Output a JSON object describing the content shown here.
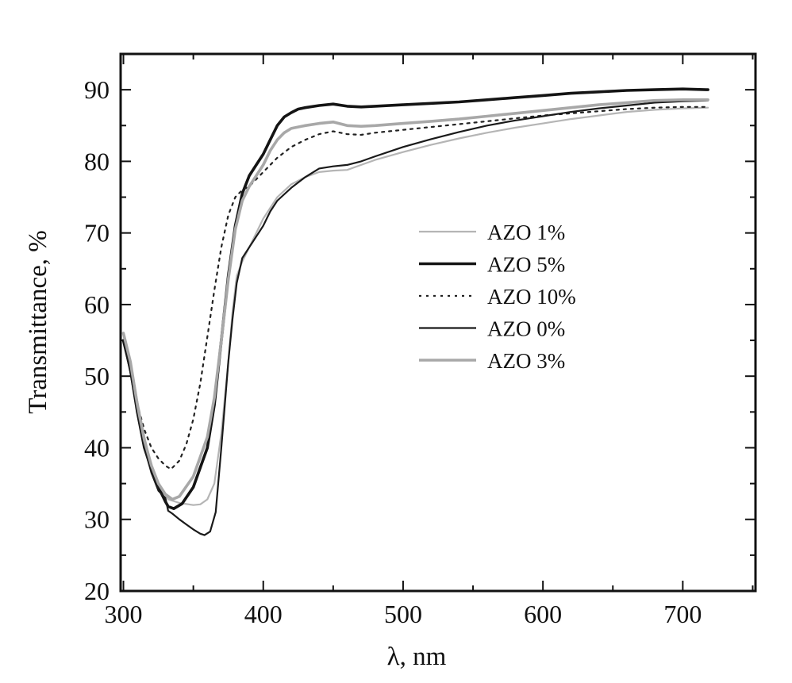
{
  "chart_data": {
    "type": "line",
    "title": "",
    "xlabel": "λ, nm",
    "ylabel": "Transmittance, %",
    "xlim": [
      298,
      752
    ],
    "ylim": [
      20,
      95
    ],
    "x_ticks": [
      300,
      400,
      500,
      600,
      700
    ],
    "y_ticks": [
      20,
      30,
      40,
      50,
      60,
      70,
      80,
      90
    ],
    "grid": false,
    "legend_position": "center-right",
    "series": [
      {
        "name": "AZO 1%",
        "color": "#b5b5b5",
        "width": 2.2,
        "dash": "",
        "points": [
          [
            300,
            56
          ],
          [
            305,
            52
          ],
          [
            310,
            46.5
          ],
          [
            315,
            41.5
          ],
          [
            320,
            37.5
          ],
          [
            325,
            35
          ],
          [
            330,
            33.5
          ],
          [
            332,
            32.8
          ],
          [
            340,
            32.3
          ],
          [
            350,
            32
          ],
          [
            355,
            32.1
          ],
          [
            360,
            32.8
          ],
          [
            365,
            35
          ],
          [
            370,
            42
          ],
          [
            375,
            52
          ],
          [
            378,
            59
          ],
          [
            381,
            64
          ],
          [
            385,
            66
          ],
          [
            390,
            68
          ],
          [
            395,
            70
          ],
          [
            400,
            72
          ],
          [
            405,
            73.5
          ],
          [
            410,
            75
          ],
          [
            420,
            76.8
          ],
          [
            430,
            77.8
          ],
          [
            440,
            78.5
          ],
          [
            450,
            78.7
          ],
          [
            460,
            78.8
          ],
          [
            470,
            79.5
          ],
          [
            480,
            80.2
          ],
          [
            500,
            81.3
          ],
          [
            520,
            82.3
          ],
          [
            540,
            83.2
          ],
          [
            560,
            84
          ],
          [
            580,
            84.7
          ],
          [
            600,
            85.3
          ],
          [
            620,
            85.9
          ],
          [
            640,
            86.4
          ],
          [
            660,
            86.9
          ],
          [
            680,
            87.2
          ],
          [
            700,
            87.4
          ],
          [
            718,
            87.5
          ]
        ]
      },
      {
        "name": "AZO 5%",
        "color": "#141414",
        "width": 3.6,
        "dash": "",
        "points": [
          [
            300,
            55
          ],
          [
            305,
            51
          ],
          [
            310,
            45
          ],
          [
            315,
            40
          ],
          [
            320,
            37
          ],
          [
            325,
            34.5
          ],
          [
            330,
            32.5
          ],
          [
            332,
            31.8
          ],
          [
            336,
            31.5
          ],
          [
            342,
            32.2
          ],
          [
            350,
            34.5
          ],
          [
            360,
            40
          ],
          [
            365,
            46
          ],
          [
            370,
            55
          ],
          [
            375,
            64
          ],
          [
            380,
            71
          ],
          [
            385,
            75.5
          ],
          [
            390,
            78
          ],
          [
            395,
            79.5
          ],
          [
            400,
            81
          ],
          [
            405,
            83
          ],
          [
            410,
            85
          ],
          [
            415,
            86.2
          ],
          [
            420,
            86.8
          ],
          [
            425,
            87.3
          ],
          [
            430,
            87.5
          ],
          [
            440,
            87.8
          ],
          [
            450,
            88
          ],
          [
            460,
            87.7
          ],
          [
            470,
            87.6
          ],
          [
            480,
            87.7
          ],
          [
            500,
            87.9
          ],
          [
            520,
            88.1
          ],
          [
            540,
            88.3
          ],
          [
            560,
            88.6
          ],
          [
            580,
            88.9
          ],
          [
            600,
            89.2
          ],
          [
            620,
            89.5
          ],
          [
            640,
            89.7
          ],
          [
            660,
            89.9
          ],
          [
            680,
            90
          ],
          [
            700,
            90.1
          ],
          [
            718,
            90
          ]
        ]
      },
      {
        "name": "AZO 10%",
        "color": "#222222",
        "width": 2.2,
        "dash": "3,6",
        "points": [
          [
            300,
            55
          ],
          [
            305,
            51
          ],
          [
            310,
            46
          ],
          [
            315,
            42.5
          ],
          [
            320,
            40
          ],
          [
            325,
            38.5
          ],
          [
            330,
            37.5
          ],
          [
            334,
            37
          ],
          [
            340,
            38.2
          ],
          [
            345,
            40.5
          ],
          [
            350,
            44
          ],
          [
            355,
            49
          ],
          [
            360,
            55.5
          ],
          [
            365,
            62
          ],
          [
            370,
            68
          ],
          [
            375,
            72.5
          ],
          [
            380,
            75
          ],
          [
            385,
            76
          ],
          [
            390,
            76.5
          ],
          [
            395,
            77.5
          ],
          [
            400,
            78.5
          ],
          [
            410,
            80.5
          ],
          [
            420,
            82
          ],
          [
            430,
            83
          ],
          [
            440,
            83.8
          ],
          [
            450,
            84.2
          ],
          [
            460,
            83.8
          ],
          [
            470,
            83.7
          ],
          [
            480,
            84
          ],
          [
            500,
            84.4
          ],
          [
            520,
            84.8
          ],
          [
            540,
            85.2
          ],
          [
            560,
            85.6
          ],
          [
            580,
            86
          ],
          [
            600,
            86.4
          ],
          [
            620,
            86.7
          ],
          [
            640,
            87
          ],
          [
            660,
            87.3
          ],
          [
            680,
            87.5
          ],
          [
            700,
            87.6
          ],
          [
            718,
            87.6
          ]
        ]
      },
      {
        "name": "AZO 0%",
        "color": "#1a1a1a",
        "width": 2.2,
        "dash": "",
        "points": [
          [
            300,
            55
          ],
          [
            305,
            50.5
          ],
          [
            310,
            45
          ],
          [
            315,
            40
          ],
          [
            320,
            36.5
          ],
          [
            325,
            34
          ],
          [
            330,
            33
          ],
          [
            332,
            31.2
          ],
          [
            335,
            30.8
          ],
          [
            340,
            30
          ],
          [
            345,
            29.3
          ],
          [
            350,
            28.6
          ],
          [
            355,
            28
          ],
          [
            358,
            27.8
          ],
          [
            362,
            28.3
          ],
          [
            366,
            31
          ],
          [
            370,
            40
          ],
          [
            375,
            52
          ],
          [
            378,
            58
          ],
          [
            381,
            63
          ],
          [
            385,
            66.5
          ],
          [
            390,
            68
          ],
          [
            395,
            69.5
          ],
          [
            400,
            71
          ],
          [
            405,
            73
          ],
          [
            410,
            74.5
          ],
          [
            420,
            76.3
          ],
          [
            430,
            77.8
          ],
          [
            440,
            79
          ],
          [
            450,
            79.3
          ],
          [
            460,
            79.5
          ],
          [
            470,
            80
          ],
          [
            480,
            80.7
          ],
          [
            500,
            82
          ],
          [
            520,
            83.1
          ],
          [
            540,
            84.1
          ],
          [
            560,
            85
          ],
          [
            580,
            85.7
          ],
          [
            600,
            86.3
          ],
          [
            620,
            86.9
          ],
          [
            640,
            87.4
          ],
          [
            660,
            87.8
          ],
          [
            680,
            88.2
          ],
          [
            700,
            88.4
          ],
          [
            718,
            88.5
          ]
        ]
      },
      {
        "name": "AZO 3%",
        "color": "#a8a8a8",
        "width": 3.6,
        "dash": "",
        "points": [
          [
            300,
            56
          ],
          [
            305,
            52
          ],
          [
            310,
            46
          ],
          [
            315,
            41
          ],
          [
            320,
            37.5
          ],
          [
            325,
            35
          ],
          [
            330,
            33.5
          ],
          [
            335,
            32.8
          ],
          [
            340,
            33.2
          ],
          [
            350,
            36
          ],
          [
            360,
            41.5
          ],
          [
            365,
            47
          ],
          [
            370,
            55
          ],
          [
            375,
            63.5
          ],
          [
            380,
            70.5
          ],
          [
            385,
            74.5
          ],
          [
            390,
            76.5
          ],
          [
            395,
            78
          ],
          [
            400,
            79.5
          ],
          [
            405,
            81.5
          ],
          [
            410,
            83
          ],
          [
            415,
            84
          ],
          [
            420,
            84.6
          ],
          [
            430,
            85
          ],
          [
            440,
            85.3
          ],
          [
            450,
            85.5
          ],
          [
            460,
            85
          ],
          [
            470,
            84.9
          ],
          [
            480,
            85
          ],
          [
            500,
            85.3
          ],
          [
            520,
            85.6
          ],
          [
            540,
            85.9
          ],
          [
            560,
            86.3
          ],
          [
            580,
            86.7
          ],
          [
            600,
            87.1
          ],
          [
            620,
            87.5
          ],
          [
            640,
            87.9
          ],
          [
            660,
            88.2
          ],
          [
            680,
            88.5
          ],
          [
            700,
            88.6
          ],
          [
            718,
            88.6
          ]
        ]
      }
    ]
  }
}
